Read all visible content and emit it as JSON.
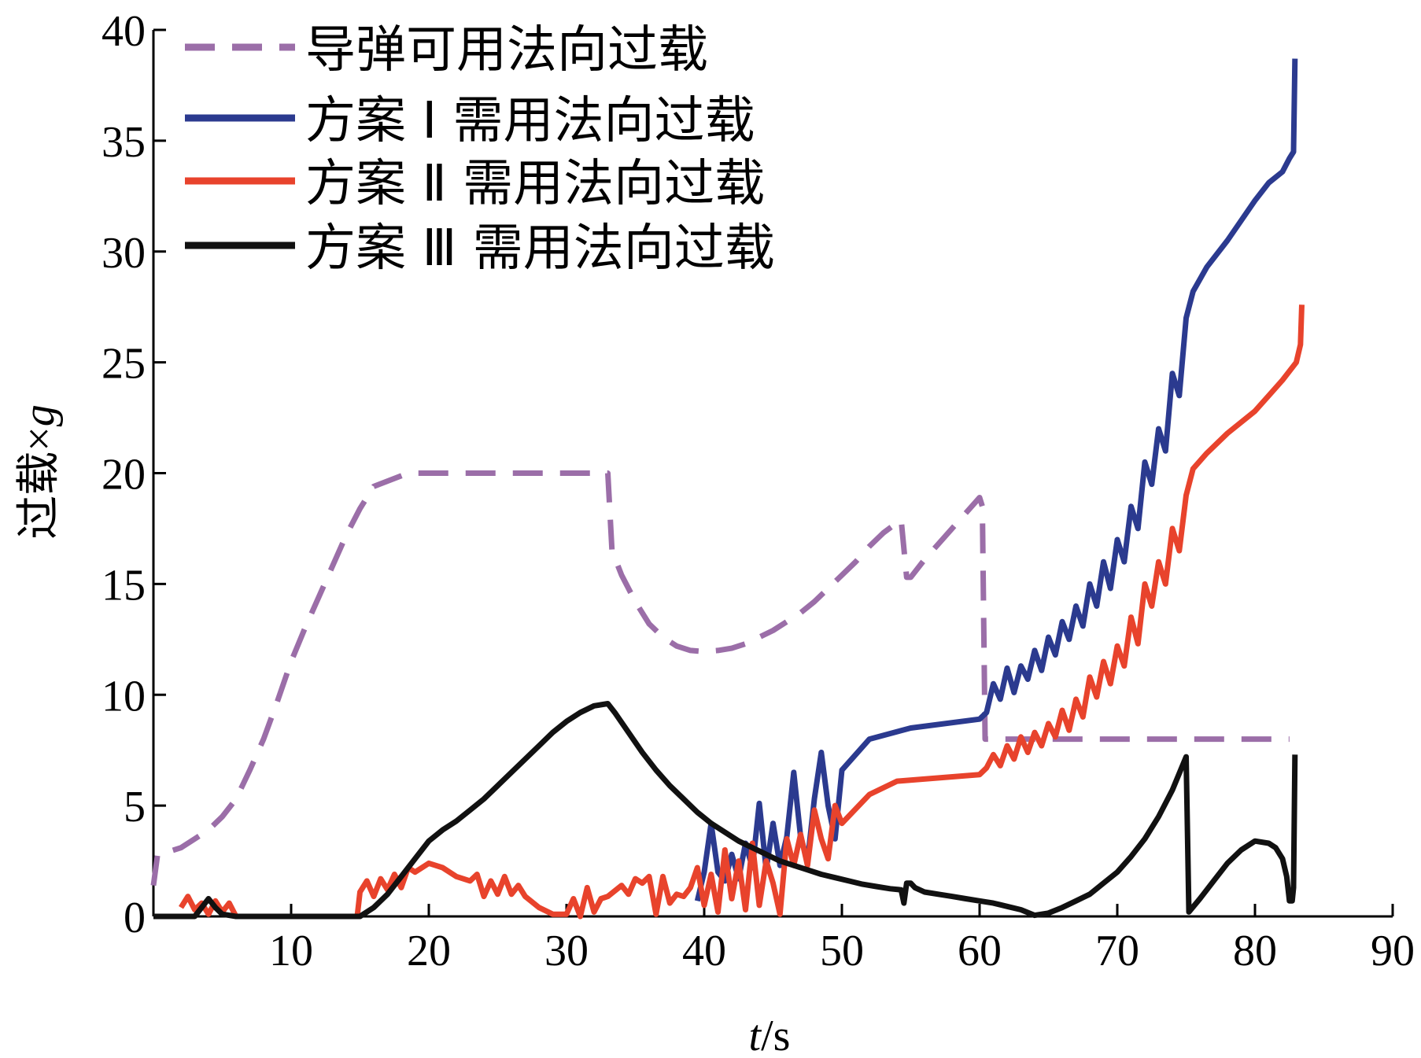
{
  "chart_data": {
    "type": "line",
    "title": "",
    "xlabel_italic": "t",
    "xlabel_unit": "/s",
    "ylabel_text": "过载×",
    "ylabel_italic": "g",
    "xlim": [
      0,
      90
    ],
    "ylim": [
      0,
      40
    ],
    "x_ticks": [
      10,
      20,
      30,
      40,
      50,
      60,
      70,
      80,
      90
    ],
    "y_ticks": [
      0,
      5,
      10,
      15,
      20,
      25,
      30,
      35,
      40
    ],
    "grid": false,
    "legend_position": "top-left",
    "series": [
      {
        "name": "导弹可用法向过载",
        "color": "#9b6ea8",
        "dashed": true,
        "points": [
          [
            0,
            1.4
          ],
          [
            0.3,
            2.8
          ],
          [
            1,
            2.9
          ],
          [
            2,
            3.1
          ],
          [
            3,
            3.5
          ],
          [
            4,
            3.9
          ],
          [
            5,
            4.5
          ],
          [
            6,
            5.3
          ],
          [
            7,
            6.6
          ],
          [
            8,
            8.0
          ],
          [
            9,
            9.7
          ],
          [
            10,
            11.5
          ],
          [
            11,
            13.0
          ],
          [
            12,
            14.4
          ],
          [
            13,
            15.8
          ],
          [
            14,
            17.2
          ],
          [
            15,
            18.4
          ],
          [
            16,
            19.4
          ],
          [
            18.5,
            20.0
          ],
          [
            20,
            20.0
          ],
          [
            25,
            20.0
          ],
          [
            30,
            20.0
          ],
          [
            33,
            20.0
          ],
          [
            33.3,
            16.5
          ],
          [
            34,
            15.4
          ],
          [
            35,
            14.2
          ],
          [
            36,
            13.2
          ],
          [
            37,
            12.6
          ],
          [
            38,
            12.2
          ],
          [
            39,
            12.0
          ],
          [
            40,
            11.95
          ],
          [
            41,
            12.0
          ],
          [
            42,
            12.1
          ],
          [
            43,
            12.3
          ],
          [
            44,
            12.6
          ],
          [
            45,
            12.9
          ],
          [
            46,
            13.3
          ],
          [
            47,
            13.7
          ],
          [
            48,
            14.2
          ],
          [
            49,
            14.8
          ],
          [
            50,
            15.4
          ],
          [
            51,
            16.0
          ],
          [
            52,
            16.7
          ],
          [
            53,
            17.3
          ],
          [
            54.3,
            17.9
          ],
          [
            54.7,
            15.3
          ],
          [
            55,
            15.3
          ],
          [
            56,
            16.1
          ],
          [
            57,
            16.8
          ],
          [
            58,
            17.5
          ],
          [
            59,
            18.2
          ],
          [
            60,
            18.9
          ],
          [
            60.2,
            18.5
          ],
          [
            60.4,
            8.0
          ],
          [
            62,
            8.0
          ],
          [
            70,
            8.0
          ],
          [
            80,
            8.0
          ],
          [
            82.5,
            8.0
          ]
        ]
      },
      {
        "name": "方案 Ⅰ 需用法向过载",
        "color": "#2b3a8f",
        "dashed": false,
        "points": [
          [
            39.5,
            0.7
          ],
          [
            40,
            2.0
          ],
          [
            40.5,
            4.2
          ],
          [
            41,
            2.0
          ],
          [
            41.5,
            1.6
          ],
          [
            42,
            2.8
          ],
          [
            42.5,
            1.7
          ],
          [
            43,
            3.3
          ],
          [
            43.5,
            2.2
          ],
          [
            44,
            5.1
          ],
          [
            44.5,
            2.1
          ],
          [
            45,
            4.2
          ],
          [
            45.5,
            2.3
          ],
          [
            46,
            3.6
          ],
          [
            46.5,
            6.5
          ],
          [
            47,
            3.6
          ],
          [
            47.5,
            2.5
          ],
          [
            48,
            5.3
          ],
          [
            48.5,
            7.4
          ],
          [
            49,
            5.0
          ],
          [
            49.5,
            3.5
          ],
          [
            50,
            6.6
          ],
          [
            52,
            8.0
          ],
          [
            55,
            8.5
          ],
          [
            60,
            8.9
          ],
          [
            60.5,
            9.2
          ],
          [
            61,
            10.5
          ],
          [
            61.5,
            9.8
          ],
          [
            62,
            11.2
          ],
          [
            62.5,
            10.1
          ],
          [
            63,
            11.3
          ],
          [
            63.5,
            10.7
          ],
          [
            64,
            12.0
          ],
          [
            64.5,
            11.1
          ],
          [
            65,
            12.6
          ],
          [
            65.5,
            11.8
          ],
          [
            66,
            13.3
          ],
          [
            66.5,
            12.5
          ],
          [
            67,
            14.0
          ],
          [
            67.5,
            13.1
          ],
          [
            68,
            15.0
          ],
          [
            68.5,
            14.0
          ],
          [
            69,
            16.0
          ],
          [
            69.5,
            14.8
          ],
          [
            70,
            17.0
          ],
          [
            70.5,
            16.0
          ],
          [
            71,
            18.5
          ],
          [
            71.5,
            17.5
          ],
          [
            72,
            20.5
          ],
          [
            72.5,
            19.5
          ],
          [
            73,
            22.0
          ],
          [
            73.5,
            21.0
          ],
          [
            74,
            24.5
          ],
          [
            74.5,
            23.5
          ],
          [
            75,
            27.0
          ],
          [
            75.5,
            28.2
          ],
          [
            76.5,
            29.3
          ],
          [
            78,
            30.5
          ],
          [
            79,
            31.4
          ],
          [
            80,
            32.3
          ],
          [
            81,
            33.1
          ],
          [
            82,
            33.6
          ],
          [
            82.5,
            34.2
          ],
          [
            82.8,
            34.5
          ],
          [
            82.9,
            38.7
          ]
        ]
      },
      {
        "name": "方案 Ⅱ 需用法向过载",
        "color": "#e8432c",
        "dashed": false,
        "points": [
          [
            2,
            0.4
          ],
          [
            2.5,
            0.9
          ],
          [
            3,
            0.3
          ],
          [
            3.5,
            0.6
          ],
          [
            4,
            0.1
          ],
          [
            4.5,
            0.7
          ],
          [
            5,
            0.2
          ],
          [
            5.5,
            0.6
          ],
          [
            6,
            0.0
          ],
          [
            14.8,
            0.0
          ],
          [
            15,
            1.1
          ],
          [
            15.5,
            1.6
          ],
          [
            16,
            0.9
          ],
          [
            16.5,
            1.7
          ],
          [
            17,
            1.2
          ],
          [
            17.5,
            1.9
          ],
          [
            18,
            1.3
          ],
          [
            18.5,
            2.2
          ],
          [
            19,
            2.0
          ],
          [
            20,
            2.4
          ],
          [
            21,
            2.2
          ],
          [
            22,
            1.8
          ],
          [
            23,
            1.6
          ],
          [
            23.5,
            1.9
          ],
          [
            24,
            0.9
          ],
          [
            24.5,
            1.6
          ],
          [
            25,
            1.0
          ],
          [
            25.5,
            1.8
          ],
          [
            26,
            1.0
          ],
          [
            26.5,
            1.4
          ],
          [
            27,
            0.9
          ],
          [
            28,
            0.4
          ],
          [
            29,
            0.1
          ],
          [
            30,
            0.1
          ],
          [
            30.5,
            0.8
          ],
          [
            31,
            0.0
          ],
          [
            31.5,
            1.3
          ],
          [
            32,
            0.2
          ],
          [
            32.5,
            0.8
          ],
          [
            33,
            0.9
          ],
          [
            34,
            1.4
          ],
          [
            34.5,
            1.0
          ],
          [
            35,
            1.7
          ],
          [
            35.5,
            1.5
          ],
          [
            36,
            1.8
          ],
          [
            36.5,
            0.1
          ],
          [
            37,
            1.8
          ],
          [
            37.5,
            0.6
          ],
          [
            38,
            1.0
          ],
          [
            38.5,
            0.9
          ],
          [
            39,
            1.3
          ],
          [
            39.5,
            2.2
          ],
          [
            40,
            0.5
          ],
          [
            40.5,
            1.9
          ],
          [
            41,
            0.2
          ],
          [
            41.5,
            3.0
          ],
          [
            42,
            0.8
          ],
          [
            42.5,
            2.5
          ],
          [
            43,
            0.3
          ],
          [
            43.5,
            3.3
          ],
          [
            44,
            0.5
          ],
          [
            44.5,
            2.5
          ],
          [
            45,
            1.5
          ],
          [
            45.5,
            0.1
          ],
          [
            46,
            3.5
          ],
          [
            46.5,
            2.3
          ],
          [
            47,
            3.7
          ],
          [
            47.5,
            2.3
          ],
          [
            48,
            4.8
          ],
          [
            48.5,
            3.5
          ],
          [
            49,
            2.6
          ],
          [
            49.5,
            5.0
          ],
          [
            50,
            4.2
          ],
          [
            52,
            5.5
          ],
          [
            54,
            6.1
          ],
          [
            60,
            6.4
          ],
          [
            60.5,
            6.7
          ],
          [
            61,
            7.3
          ],
          [
            61.5,
            6.8
          ],
          [
            62,
            7.7
          ],
          [
            62.5,
            7.1
          ],
          [
            63,
            8.1
          ],
          [
            63.5,
            7.4
          ],
          [
            64,
            8.3
          ],
          [
            64.5,
            7.7
          ],
          [
            65,
            8.7
          ],
          [
            65.5,
            8.1
          ],
          [
            66,
            9.3
          ],
          [
            66.5,
            8.4
          ],
          [
            67,
            9.8
          ],
          [
            67.5,
            9.0
          ],
          [
            68,
            10.8
          ],
          [
            68.5,
            9.9
          ],
          [
            69,
            11.5
          ],
          [
            69.5,
            10.5
          ],
          [
            70,
            12.2
          ],
          [
            70.5,
            11.3
          ],
          [
            71,
            13.5
          ],
          [
            71.5,
            12.3
          ],
          [
            72,
            15.0
          ],
          [
            72.5,
            14.0
          ],
          [
            73,
            16.0
          ],
          [
            73.5,
            15.0
          ],
          [
            74,
            17.5
          ],
          [
            74.5,
            16.5
          ],
          [
            75,
            19.0
          ],
          [
            75.5,
            20.2
          ],
          [
            76.5,
            20.9
          ],
          [
            78,
            21.8
          ],
          [
            80,
            22.8
          ],
          [
            81,
            23.5
          ],
          [
            82,
            24.2
          ],
          [
            83,
            25.0
          ],
          [
            83.3,
            25.8
          ],
          [
            83.4,
            27.6
          ]
        ]
      },
      {
        "name": "方案 Ⅲ 需用法向过载",
        "color": "#111111",
        "dashed": false,
        "points": [
          [
            0,
            0.0
          ],
          [
            3,
            0.0
          ],
          [
            3.5,
            0.4
          ],
          [
            4,
            0.8
          ],
          [
            4.5,
            0.4
          ],
          [
            5,
            0.1
          ],
          [
            6,
            0.0
          ],
          [
            15,
            0.0
          ],
          [
            16,
            0.4
          ],
          [
            17,
            1.0
          ],
          [
            18,
            1.8
          ],
          [
            19,
            2.6
          ],
          [
            20,
            3.4
          ],
          [
            21,
            3.9
          ],
          [
            22,
            4.3
          ],
          [
            23,
            4.8
          ],
          [
            24,
            5.3
          ],
          [
            25,
            5.9
          ],
          [
            26,
            6.5
          ],
          [
            27,
            7.1
          ],
          [
            28,
            7.7
          ],
          [
            29,
            8.3
          ],
          [
            30,
            8.8
          ],
          [
            31,
            9.2
          ],
          [
            32,
            9.5
          ],
          [
            33,
            9.6
          ],
          [
            33.5,
            9.2
          ],
          [
            34.5,
            8.3
          ],
          [
            35.5,
            7.4
          ],
          [
            36.5,
            6.6
          ],
          [
            37.5,
            5.9
          ],
          [
            38.5,
            5.3
          ],
          [
            39.5,
            4.7
          ],
          [
            40.5,
            4.2
          ],
          [
            41.5,
            3.8
          ],
          [
            42.5,
            3.4
          ],
          [
            43.5,
            3.1
          ],
          [
            44.5,
            2.8
          ],
          [
            45.5,
            2.5
          ],
          [
            46.5,
            2.3
          ],
          [
            47.5,
            2.1
          ],
          [
            48.5,
            1.9
          ],
          [
            49.5,
            1.75
          ],
          [
            50.5,
            1.6
          ],
          [
            51.5,
            1.45
          ],
          [
            52.5,
            1.35
          ],
          [
            53.5,
            1.25
          ],
          [
            54.3,
            1.2
          ],
          [
            54.5,
            0.6
          ],
          [
            54.7,
            1.5
          ],
          [
            55,
            1.5
          ],
          [
            55.3,
            1.3
          ],
          [
            56,
            1.1
          ],
          [
            57,
            1.0
          ],
          [
            58,
            0.9
          ],
          [
            59,
            0.8
          ],
          [
            60,
            0.7
          ],
          [
            61,
            0.6
          ],
          [
            62,
            0.45
          ],
          [
            63,
            0.3
          ],
          [
            64,
            0.05
          ],
          [
            65,
            0.15
          ],
          [
            66,
            0.4
          ],
          [
            67,
            0.7
          ],
          [
            68,
            1.0
          ],
          [
            69,
            1.5
          ],
          [
            70,
            2.0
          ],
          [
            71,
            2.7
          ],
          [
            72,
            3.5
          ],
          [
            73,
            4.5
          ],
          [
            74,
            5.7
          ],
          [
            75,
            7.2
          ],
          [
            75.2,
            0.2
          ],
          [
            76,
            0.8
          ],
          [
            77,
            1.6
          ],
          [
            78,
            2.4
          ],
          [
            79,
            3.0
          ],
          [
            80,
            3.4
          ],
          [
            81,
            3.3
          ],
          [
            81.5,
            3.1
          ],
          [
            82,
            2.6
          ],
          [
            82.3,
            1.8
          ],
          [
            82.5,
            0.7
          ],
          [
            82.7,
            0.7
          ],
          [
            82.8,
            1.3
          ],
          [
            82.9,
            7.3
          ]
        ]
      }
    ]
  }
}
